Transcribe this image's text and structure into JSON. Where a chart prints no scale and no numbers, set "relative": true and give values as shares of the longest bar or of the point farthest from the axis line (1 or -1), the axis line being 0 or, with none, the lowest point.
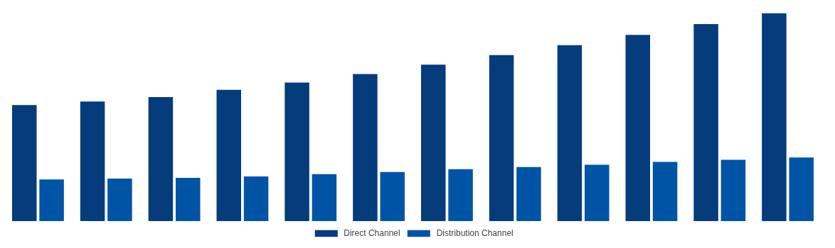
{
  "chart_data": {
    "type": "bar",
    "relative": true,
    "categories": [
      null,
      null,
      null,
      null,
      null,
      null,
      null,
      null,
      null,
      null,
      null,
      null
    ],
    "series": [
      {
        "name": "Direct Channel",
        "color": "#043c7c",
        "values": [
          0.559,
          0.576,
          0.597,
          0.632,
          0.667,
          0.708,
          0.753,
          0.799,
          0.847,
          0.896,
          0.948,
          1
        ]
      },
      {
        "name": "Distribution Channel",
        "color": "#0054a6",
        "values": [
          0.201,
          0.205,
          0.208,
          0.215,
          0.226,
          0.236,
          0.25,
          0.26,
          0.271,
          0.285,
          0.295,
          0.306
        ]
      }
    ],
    "legend": "bottom"
  }
}
